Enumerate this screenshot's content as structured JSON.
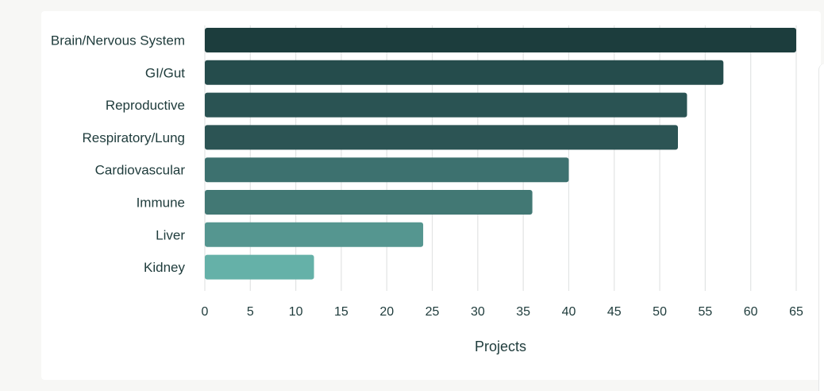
{
  "page": {
    "title": ""
  },
  "chart_data": {
    "type": "bar",
    "orientation": "horizontal",
    "title": "",
    "xlabel": "Projects",
    "ylabel": "",
    "xlim": [
      0,
      65
    ],
    "xticks": [
      0,
      5,
      10,
      15,
      20,
      25,
      30,
      35,
      40,
      45,
      50,
      55,
      60,
      65
    ],
    "grid": "vertical",
    "legend": "none",
    "categories": [
      "Brain/Nervous System",
      "GI/Gut",
      "Reproductive",
      "Respiratory/Lung",
      "Cardiovascular",
      "Immune",
      "Liver",
      "Kidney"
    ],
    "values": [
      65,
      57,
      53,
      52,
      40,
      36,
      24,
      12
    ],
    "colors": [
      "#1c3d3d",
      "#254c4c",
      "#2a5353",
      "#2c5454",
      "#3d716f",
      "#427874",
      "#559690",
      "#65b1a8"
    ]
  }
}
